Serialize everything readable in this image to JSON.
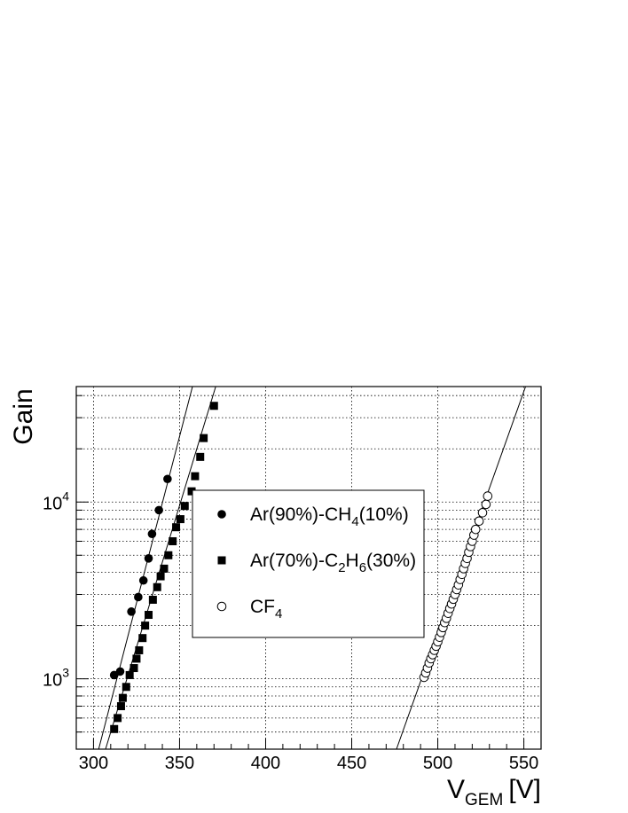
{
  "chart_data": {
    "type": "scatter",
    "title": "",
    "xlabel": "V",
    "xlabel_sub": "GEM",
    "xlabel_unit": "[V]",
    "ylabel": "Gain",
    "xlim": [
      290,
      560
    ],
    "ylim": [
      400,
      45000
    ],
    "yscale": "log",
    "grid": true,
    "x_ticks": [
      300,
      350,
      400,
      450,
      500,
      550
    ],
    "y_ticks": [
      {
        "value": 1000,
        "base": "10",
        "exp": "3"
      },
      {
        "value": 10000,
        "base": "10",
        "exp": "4"
      }
    ],
    "legend_position": "center",
    "series": [
      {
        "name": "Ar(90%)-CH4(10%)",
        "label_parts": [
          "Ar(90%)-CH",
          "4",
          "(10%)"
        ],
        "marker": "filled-circle",
        "x": [
          312,
          315.5,
          322,
          326,
          329,
          332,
          334,
          338,
          343
        ],
        "y": [
          1050,
          1100,
          2400,
          2900,
          3600,
          4800,
          6600,
          9000,
          13500
        ],
        "fit": {
          "x": [
            303,
            357.5
          ],
          "y": [
            400,
            45000
          ]
        }
      },
      {
        "name": "Ar(70%)-C2H6(30%)",
        "label_parts": [
          "Ar(70%)-C",
          "2",
          "H",
          "6",
          "(30%)"
        ],
        "marker": "filled-square",
        "x": [
          312,
          314,
          316,
          317,
          319,
          321,
          323.5,
          325,
          326.5,
          328.5,
          330,
          332,
          334.5,
          337,
          339,
          341,
          343.5,
          346,
          348,
          350.5,
          353,
          357,
          359,
          362,
          364,
          370
        ],
        "y": [
          520,
          600,
          700,
          780,
          900,
          1050,
          1150,
          1300,
          1450,
          1700,
          2000,
          2300,
          2800,
          3300,
          3800,
          4200,
          5000,
          6000,
          7200,
          8000,
          9500,
          11500,
          14000,
          18000,
          23000,
          35000
        ],
        "fit": {
          "x": [
            307,
            371
          ],
          "y": [
            400,
            45000
          ]
        }
      },
      {
        "name": "CF4",
        "label_parts": [
          "CF",
          "4"
        ],
        "marker": "open-circle",
        "x": [
          492,
          493,
          494,
          495,
          496,
          497,
          498,
          499,
          500,
          501,
          502,
          503,
          504,
          505,
          506,
          507,
          508,
          509,
          510,
          511,
          512,
          513,
          514,
          515,
          516,
          517,
          518,
          519,
          520,
          521,
          522,
          524,
          526,
          528,
          529
        ],
        "y": [
          1020,
          1080,
          1150,
          1230,
          1300,
          1370,
          1450,
          1530,
          1620,
          1720,
          1830,
          1950,
          2080,
          2200,
          2350,
          2500,
          2650,
          2820,
          3000,
          3200,
          3400,
          3650,
          3900,
          4200,
          4500,
          4800,
          5200,
          5600,
          6000,
          6500,
          7000,
          7800,
          8700,
          9700,
          10800
        ],
        "fit": {
          "x": [
            476,
            551
          ],
          "y": [
            400,
            45000
          ]
        }
      }
    ]
  }
}
